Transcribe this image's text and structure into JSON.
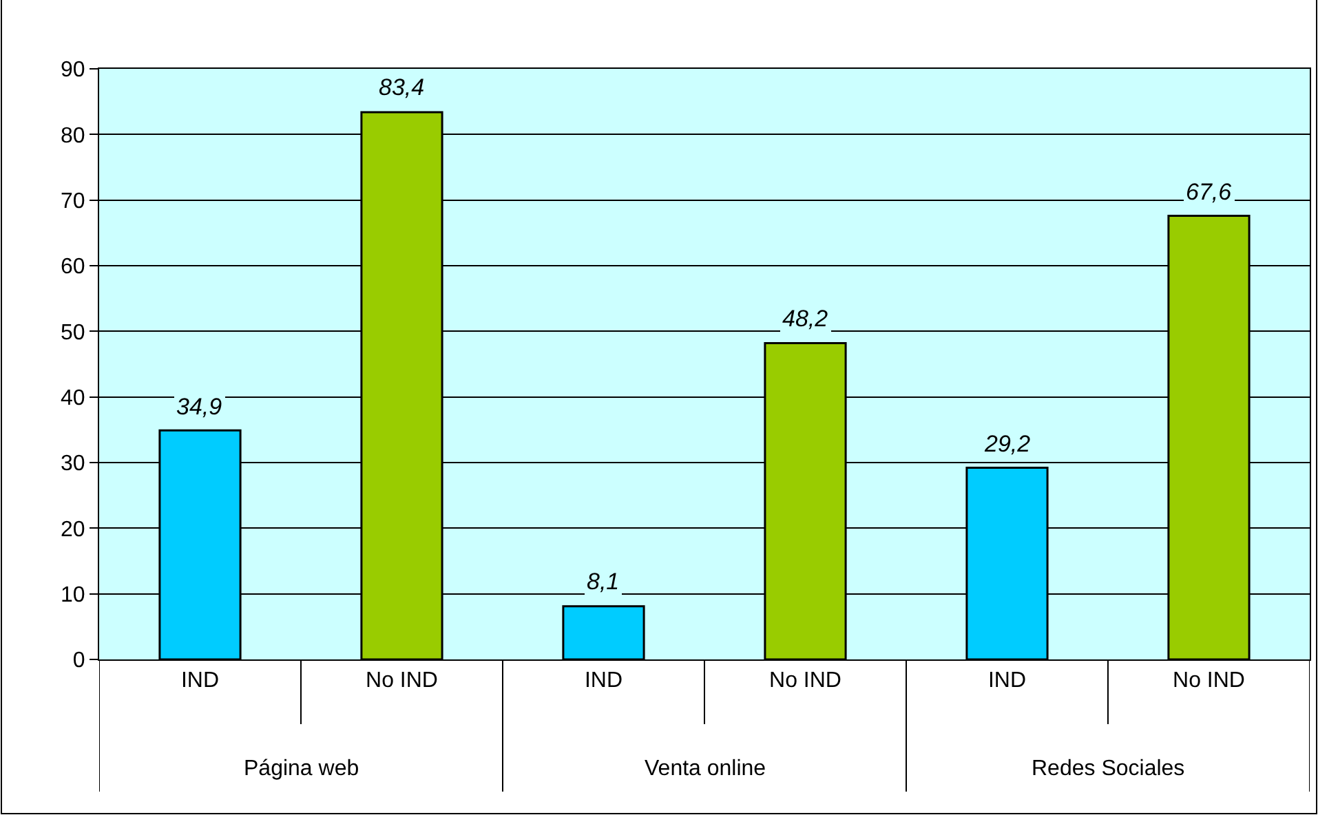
{
  "chart_data": {
    "type": "bar",
    "categories": [
      "IND",
      "No IND",
      "IND",
      "No IND",
      "IND",
      "No IND"
    ],
    "values": [
      34.9,
      83.4,
      8.1,
      48.2,
      29.2,
      67.6
    ],
    "value_labels": [
      "34,9",
      "83,4",
      "8,1",
      "48,2",
      "29,2",
      "67,6"
    ],
    "colors": [
      "#00ccff",
      "#99cc00",
      "#00ccff",
      "#99cc00",
      "#00ccff",
      "#99cc00"
    ],
    "ylim": [
      0,
      90
    ],
    "yticks": [
      0,
      10,
      20,
      30,
      40,
      50,
      60,
      70,
      80,
      90
    ],
    "grid": "y",
    "annotations": [
      "Página web",
      "Venta online",
      "Redes Sociales"
    ]
  }
}
